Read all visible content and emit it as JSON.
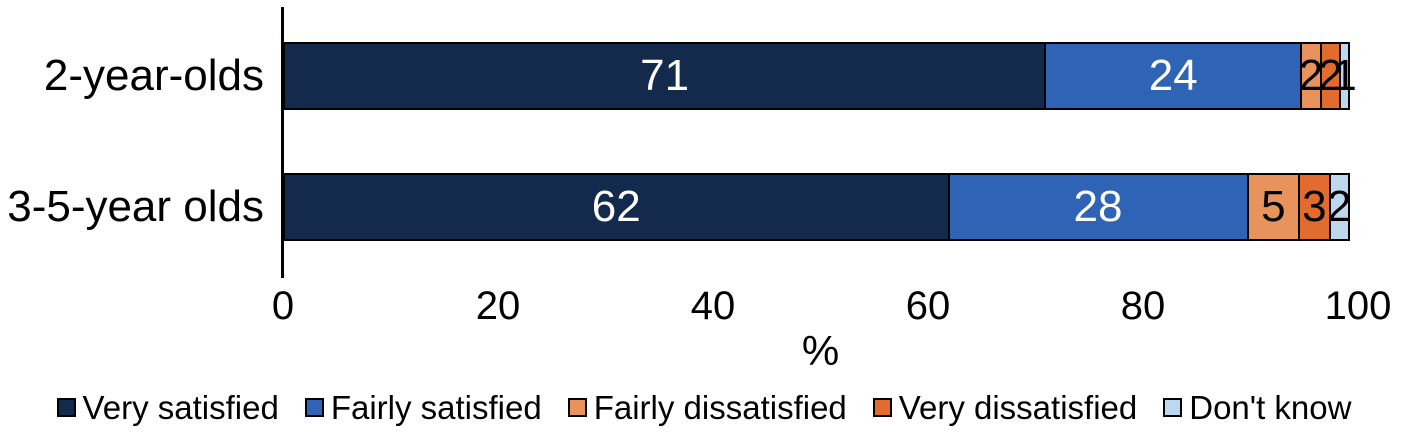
{
  "chart_data": {
    "type": "bar",
    "orientation": "horizontal",
    "stacked": true,
    "title": "",
    "categories": [
      "2-year-olds",
      "3-5-year olds"
    ],
    "series": [
      {
        "name": "Very satisfied",
        "color": "#132A4D",
        "label_color": "#FFFFFF",
        "values": [
          71,
          62
        ]
      },
      {
        "name": "Fairly satisfied",
        "color": "#2E63B5",
        "label_color": "#FFFFFF",
        "values": [
          24,
          28
        ]
      },
      {
        "name": "Fairly dissatisfied",
        "color": "#E8935C",
        "label_color": "#000000",
        "values": [
          2,
          5
        ]
      },
      {
        "name": "Very dissatisfied",
        "color": "#E26B2E",
        "label_color": "#000000",
        "values": [
          2,
          3
        ]
      },
      {
        "name": "Don't know",
        "color": "#BDD7EE",
        "label_color": "#000000",
        "values": [
          1,
          2
        ]
      }
    ],
    "xlabel": "%",
    "x_ticks": [
      0,
      20,
      40,
      60,
      80,
      100
    ],
    "xlim": [
      0,
      100
    ],
    "grid": false,
    "legend_position": "bottom",
    "bar_border_color": "#000000",
    "axis_line_color": "#000000"
  }
}
